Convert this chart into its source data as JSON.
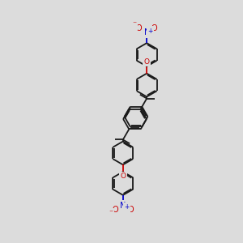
{
  "bg_color": "#dcdcdc",
  "bond_color": "#1a1a1a",
  "oxygen_color": "#cc0000",
  "nitrogen_color": "#0000cc",
  "lw": 1.3,
  "dbo": 0.048,
  "r_ring": 0.48,
  "fig_w": 3.0,
  "fig_h": 3.0,
  "dpi": 100,
  "xlim": [
    0,
    10
  ],
  "ylim": [
    0,
    10
  ]
}
